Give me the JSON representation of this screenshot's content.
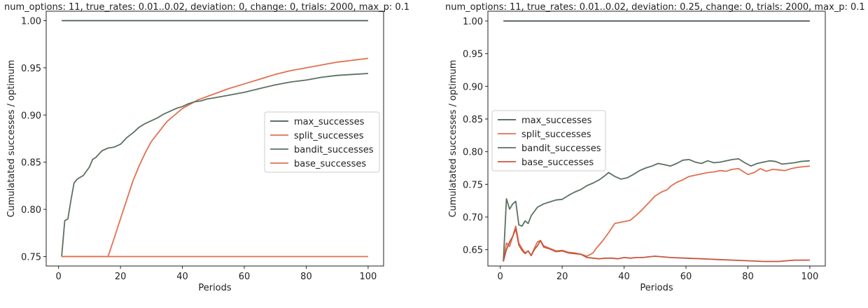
{
  "chart_data": [
    {
      "type": "line",
      "title": "num_options: 11, true_rates: 0.01..0.02, deviation: 0, change: 0, trials: 2000, max_p: 0.1",
      "xlabel": "Periods",
      "ylabel": "Cumulatated successes / optimum",
      "xlim": [
        -4,
        105
      ],
      "ylim": [
        0.74,
        1.01
      ],
      "xticks": [
        0,
        20,
        40,
        60,
        80,
        100
      ],
      "yticks": [
        0.75,
        0.8,
        0.85,
        0.9,
        0.95,
        1.0
      ],
      "ytick_labels": [
        "0.75",
        "0.80",
        "0.85",
        "0.90",
        "0.95",
        "1.00"
      ],
      "legend_position": "center-right",
      "series": [
        {
          "name": "max_successes",
          "color": "#4a5a4e",
          "points": [
            [
              1,
              1.0
            ],
            [
              100,
              1.0
            ]
          ]
        },
        {
          "name": "split_successes",
          "color": "#e07050",
          "points": [
            [
              1,
              0.75
            ],
            [
              16,
              0.75
            ],
            [
              18,
              0.77
            ],
            [
              20,
              0.79
            ],
            [
              22,
              0.81
            ],
            [
              24,
              0.83
            ],
            [
              26,
              0.846
            ],
            [
              28,
              0.86
            ],
            [
              30,
              0.872
            ],
            [
              35,
              0.893
            ],
            [
              40,
              0.907
            ],
            [
              45,
              0.916
            ],
            [
              50,
              0.922
            ],
            [
              55,
              0.928
            ],
            [
              60,
              0.933
            ],
            [
              65,
              0.938
            ],
            [
              70,
              0.943
            ],
            [
              75,
              0.947
            ],
            [
              80,
              0.95
            ],
            [
              85,
              0.953
            ],
            [
              90,
              0.956
            ],
            [
              95,
              0.958
            ],
            [
              100,
              0.96
            ]
          ]
        },
        {
          "name": "bandit_successes",
          "color": "#5a7060",
          "points": [
            [
              1,
              0.75
            ],
            [
              2,
              0.788
            ],
            [
              3,
              0.79
            ],
            [
              4,
              0.81
            ],
            [
              5,
              0.828
            ],
            [
              6,
              0.832
            ],
            [
              8,
              0.836
            ],
            [
              10,
              0.845
            ],
            [
              11,
              0.853
            ],
            [
              12,
              0.855
            ],
            [
              14,
              0.862
            ],
            [
              16,
              0.865
            ],
            [
              18,
              0.866
            ],
            [
              20,
              0.869
            ],
            [
              22,
              0.876
            ],
            [
              24,
              0.881
            ],
            [
              26,
              0.887
            ],
            [
              28,
              0.891
            ],
            [
              30,
              0.894
            ],
            [
              32,
              0.897
            ],
            [
              34,
              0.901
            ],
            [
              36,
              0.904
            ],
            [
              38,
              0.907
            ],
            [
              40,
              0.909
            ],
            [
              42,
              0.912
            ],
            [
              44,
              0.914
            ],
            [
              46,
              0.915
            ],
            [
              48,
              0.917
            ],
            [
              50,
              0.918
            ],
            [
              55,
              0.921
            ],
            [
              60,
              0.924
            ],
            [
              65,
              0.928
            ],
            [
              70,
              0.932
            ],
            [
              75,
              0.935
            ],
            [
              80,
              0.937
            ],
            [
              85,
              0.94
            ],
            [
              90,
              0.942
            ],
            [
              95,
              0.943
            ],
            [
              100,
              0.944
            ]
          ]
        },
        {
          "name": "base_successes",
          "color": "#e07050",
          "points": [
            [
              1,
              0.75
            ],
            [
              100,
              0.75
            ]
          ]
        }
      ]
    },
    {
      "type": "line",
      "title": "num_options: 11, true_rates: 0.01..0.02, deviation: 0.25, change: 0, trials: 2000, max_p: 0.1",
      "xlabel": "Periods",
      "ylabel": "Cumulatated successes / optimum",
      "xlim": [
        -4,
        105
      ],
      "ylim": [
        0.625,
        1.015
      ],
      "xticks": [
        0,
        20,
        40,
        60,
        80,
        100
      ],
      "yticks": [
        0.65,
        0.7,
        0.75,
        0.8,
        0.85,
        0.9,
        0.95,
        1.0
      ],
      "ytick_labels": [
        "0.65",
        "0.70",
        "0.75",
        "0.80",
        "0.85",
        "0.90",
        "0.95",
        "1.00"
      ],
      "legend_position": "center-left",
      "series": [
        {
          "name": "max_successes",
          "color": "#4a5a4e",
          "points": [
            [
              1,
              1.0
            ],
            [
              100,
              1.0
            ]
          ]
        },
        {
          "name": "split_successes",
          "color": "#e07050",
          "points": [
            [
              1,
              0.632
            ],
            [
              2,
              0.66
            ],
            [
              3,
              0.655
            ],
            [
              4,
              0.67
            ],
            [
              5,
              0.686
            ],
            [
              6,
              0.66
            ],
            [
              7,
              0.652
            ],
            [
              8,
              0.645
            ],
            [
              9,
              0.648
            ],
            [
              10,
              0.641
            ],
            [
              11,
              0.652
            ],
            [
              12,
              0.662
            ],
            [
              13,
              0.664
            ],
            [
              14,
              0.656
            ],
            [
              16,
              0.652
            ],
            [
              18,
              0.648
            ],
            [
              20,
              0.649
            ],
            [
              22,
              0.646
            ],
            [
              24,
              0.645
            ],
            [
              26,
              0.643
            ],
            [
              28,
              0.64
            ],
            [
              30,
              0.645
            ],
            [
              31,
              0.652
            ],
            [
              33,
              0.663
            ],
            [
              35,
              0.676
            ],
            [
              37,
              0.69
            ],
            [
              40,
              0.693
            ],
            [
              42,
              0.695
            ],
            [
              44,
              0.703
            ],
            [
              46,
              0.712
            ],
            [
              48,
              0.722
            ],
            [
              50,
              0.732
            ],
            [
              52,
              0.738
            ],
            [
              54,
              0.742
            ],
            [
              55,
              0.747
            ],
            [
              57,
              0.753
            ],
            [
              59,
              0.757
            ],
            [
              61,
              0.762
            ],
            [
              63,
              0.764
            ],
            [
              65,
              0.766
            ],
            [
              67,
              0.768
            ],
            [
              69,
              0.769
            ],
            [
              71,
              0.771
            ],
            [
              73,
              0.77
            ],
            [
              75,
              0.773
            ],
            [
              77,
              0.774
            ],
            [
              78,
              0.771
            ],
            [
              80,
              0.765
            ],
            [
              82,
              0.768
            ],
            [
              84,
              0.774
            ],
            [
              86,
              0.77
            ],
            [
              88,
              0.773
            ],
            [
              90,
              0.772
            ],
            [
              92,
              0.771
            ],
            [
              94,
              0.774
            ],
            [
              96,
              0.776
            ],
            [
              98,
              0.777
            ],
            [
              100,
              0.778
            ]
          ]
        },
        {
          "name": "bandit_successes",
          "color": "#5a7060",
          "points": [
            [
              1,
              0.632
            ],
            [
              2,
              0.728
            ],
            [
              3,
              0.712
            ],
            [
              4,
              0.72
            ],
            [
              5,
              0.724
            ],
            [
              6,
              0.688
            ],
            [
              7,
              0.686
            ],
            [
              8,
              0.694
            ],
            [
              9,
              0.69
            ],
            [
              10,
              0.702
            ],
            [
              12,
              0.715
            ],
            [
              14,
              0.72
            ],
            [
              16,
              0.723
            ],
            [
              18,
              0.726
            ],
            [
              20,
              0.727
            ],
            [
              22,
              0.733
            ],
            [
              24,
              0.738
            ],
            [
              26,
              0.742
            ],
            [
              28,
              0.748
            ],
            [
              30,
              0.752
            ],
            [
              32,
              0.757
            ],
            [
              34,
              0.764
            ],
            [
              35,
              0.768
            ],
            [
              37,
              0.762
            ],
            [
              39,
              0.758
            ],
            [
              41,
              0.76
            ],
            [
              43,
              0.765
            ],
            [
              45,
              0.771
            ],
            [
              47,
              0.775
            ],
            [
              49,
              0.778
            ],
            [
              51,
              0.782
            ],
            [
              53,
              0.78
            ],
            [
              55,
              0.778
            ],
            [
              57,
              0.782
            ],
            [
              59,
              0.787
            ],
            [
              61,
              0.788
            ],
            [
              63,
              0.784
            ],
            [
              65,
              0.782
            ],
            [
              67,
              0.786
            ],
            [
              69,
              0.783
            ],
            [
              71,
              0.784
            ],
            [
              73,
              0.786
            ],
            [
              75,
              0.788
            ],
            [
              77,
              0.789
            ],
            [
              79,
              0.783
            ],
            [
              81,
              0.778
            ],
            [
              83,
              0.782
            ],
            [
              85,
              0.784
            ],
            [
              87,
              0.786
            ],
            [
              89,
              0.785
            ],
            [
              91,
              0.781
            ],
            [
              93,
              0.782
            ],
            [
              95,
              0.783
            ],
            [
              97,
              0.785
            ],
            [
              100,
              0.786
            ]
          ]
        },
        {
          "name": "base_successes",
          "color": "#c8553d",
          "points": [
            [
              1,
              0.632
            ],
            [
              2,
              0.65
            ],
            [
              3,
              0.662
            ],
            [
              4,
              0.67
            ],
            [
              5,
              0.682
            ],
            [
              6,
              0.657
            ],
            [
              7,
              0.649
            ],
            [
              8,
              0.644
            ],
            [
              9,
              0.648
            ],
            [
              10,
              0.641
            ],
            [
              11,
              0.65
            ],
            [
              12,
              0.656
            ],
            [
              13,
              0.664
            ],
            [
              14,
              0.654
            ],
            [
              16,
              0.651
            ],
            [
              18,
              0.647
            ],
            [
              20,
              0.648
            ],
            [
              22,
              0.645
            ],
            [
              24,
              0.644
            ],
            [
              26,
              0.643
            ],
            [
              28,
              0.638
            ],
            [
              30,
              0.637
            ],
            [
              32,
              0.636
            ],
            [
              34,
              0.637
            ],
            [
              36,
              0.637
            ],
            [
              38,
              0.636
            ],
            [
              40,
              0.638
            ],
            [
              42,
              0.637
            ],
            [
              44,
              0.638
            ],
            [
              46,
              0.638
            ],
            [
              48,
              0.639
            ],
            [
              50,
              0.64
            ],
            [
              55,
              0.638
            ],
            [
              60,
              0.637
            ],
            [
              65,
              0.636
            ],
            [
              70,
              0.635
            ],
            [
              75,
              0.634
            ],
            [
              80,
              0.633
            ],
            [
              85,
              0.632
            ],
            [
              90,
              0.632
            ],
            [
              95,
              0.634
            ],
            [
              100,
              0.634
            ]
          ]
        }
      ]
    }
  ]
}
